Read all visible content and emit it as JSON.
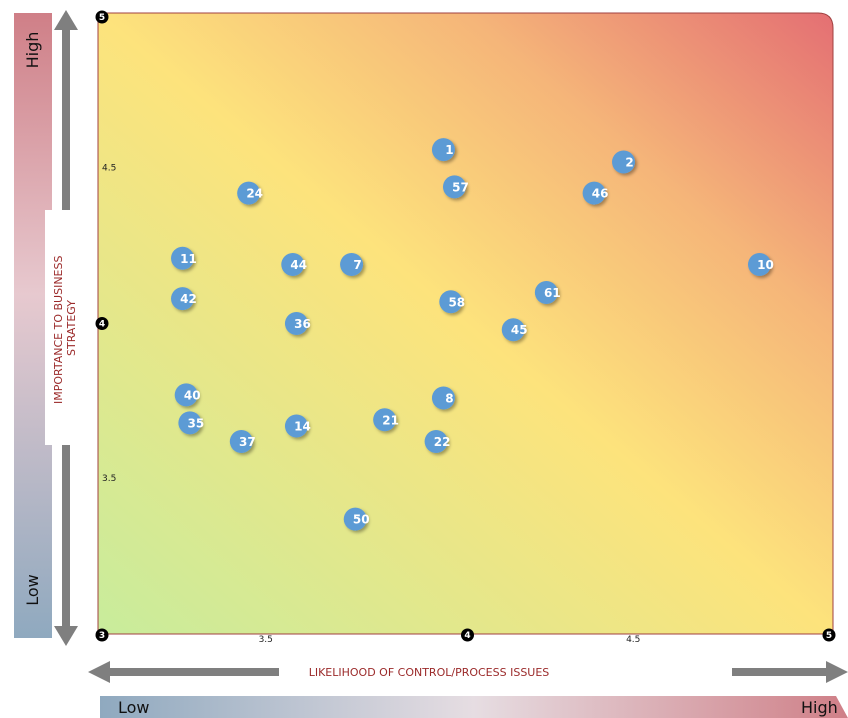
{
  "chart_data": {
    "type": "scatter",
    "xlabel": "LIKELIHOOD OF CONTROL/PROCESS ISSUES",
    "ylabel": "IMPORTANCE TO BUSINESS STRATEGY",
    "xlim": [
      3,
      5
    ],
    "ylim": [
      3,
      5
    ],
    "x_ticks": [
      {
        "value": 3,
        "label": "3",
        "style": "dot"
      },
      {
        "value": 3.5,
        "label": "3.5",
        "style": "text"
      },
      {
        "value": 4,
        "label": "4",
        "style": "dot"
      },
      {
        "value": 4.5,
        "label": "4.5",
        "style": "text"
      },
      {
        "value": 5,
        "label": "5",
        "style": "dot"
      }
    ],
    "y_ticks": [
      {
        "value": 3.5,
        "label": "3.5",
        "style": "text"
      },
      {
        "value": 4,
        "label": "4",
        "style": "dot"
      },
      {
        "value": 4.5,
        "label": "4.5",
        "style": "text"
      },
      {
        "value": 5,
        "label": "5",
        "style": "dot"
      }
    ],
    "x_low_label": "Low",
    "x_high_label": "High",
    "y_low_label": "Low",
    "y_high_label": "High",
    "grid": false,
    "background": "gradient green (low-low) to yellow to red (high-high)",
    "points": [
      {
        "label": "1",
        "x": 3.94,
        "y": 4.56
      },
      {
        "label": "2",
        "x": 4.43,
        "y": 4.52
      },
      {
        "label": "57",
        "x": 3.97,
        "y": 4.44
      },
      {
        "label": "46",
        "x": 4.35,
        "y": 4.42
      },
      {
        "label": "24",
        "x": 3.41,
        "y": 4.42
      },
      {
        "label": "11",
        "x": 3.23,
        "y": 4.21
      },
      {
        "label": "44",
        "x": 3.53,
        "y": 4.19
      },
      {
        "label": "7",
        "x": 3.69,
        "y": 4.19
      },
      {
        "label": "10",
        "x": 4.8,
        "y": 4.19
      },
      {
        "label": "61",
        "x": 4.22,
        "y": 4.1
      },
      {
        "label": "42",
        "x": 3.23,
        "y": 4.08
      },
      {
        "label": "58",
        "x": 3.96,
        "y": 4.07
      },
      {
        "label": "36",
        "x": 3.54,
        "y": 4.0
      },
      {
        "label": "45",
        "x": 4.13,
        "y": 3.98
      },
      {
        "label": "40",
        "x": 3.24,
        "y": 3.77
      },
      {
        "label": "8",
        "x": 3.94,
        "y": 3.76
      },
      {
        "label": "35",
        "x": 3.25,
        "y": 3.68
      },
      {
        "label": "21",
        "x": 3.78,
        "y": 3.69
      },
      {
        "label": "14",
        "x": 3.54,
        "y": 3.67
      },
      {
        "label": "37",
        "x": 3.39,
        "y": 3.62
      },
      {
        "label": "22",
        "x": 3.92,
        "y": 3.62
      },
      {
        "label": "50",
        "x": 3.7,
        "y": 3.37
      }
    ]
  },
  "colors": {
    "bubble": "#5b9bd5",
    "axis_arrow": "#7f7f7f",
    "label_red": "#9b2a2a",
    "corner_dot": "#000000"
  }
}
